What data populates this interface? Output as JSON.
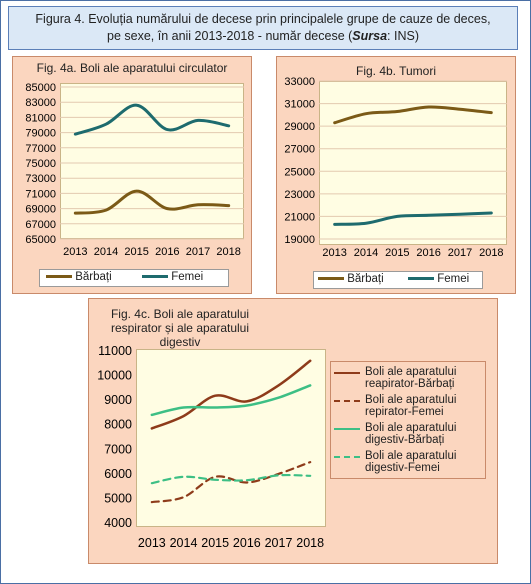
{
  "figure_title": {
    "line1": "Figura 4. Evoluția numărului de decese prin principalele grupe de cauze de deces,",
    "line2_a": "pe sexe, în anii 2013-2018 - număr decese (",
    "source_label": "Sursa",
    "line2_b": ": INS)"
  },
  "colors": {
    "brown": "#7b5a17",
    "teal": "#1e6b6e",
    "red_brown": "#8e3b1a",
    "green": "#3dbf85"
  },
  "chart_data": [
    {
      "type": "line",
      "title": "Fig. 4a. Boli ale aparatului circulator",
      "categories": [
        "2013",
        "2014",
        "2015",
        "2016",
        "2017",
        "2018"
      ],
      "ylim": [
        65000,
        85000
      ],
      "yticks": [
        "85000",
        "83000",
        "81000",
        "79000",
        "77000",
        "75000",
        "73000",
        "71000",
        "69000",
        "67000",
        "65000"
      ],
      "grid": true,
      "legend": "bottom",
      "series": [
        {
          "name": "Bărbați",
          "values": [
            68400,
            68800,
            71300,
            69000,
            69500,
            69400
          ]
        },
        {
          "name": "Femei",
          "values": [
            78800,
            80100,
            82600,
            79400,
            80600,
            79900
          ]
        }
      ]
    },
    {
      "type": "line",
      "title": "Fig. 4b. Tumori",
      "categories": [
        "2013",
        "2014",
        "2015",
        "2016",
        "2017",
        "2018"
      ],
      "ylim": [
        19000,
        33000
      ],
      "yticks": [
        "33000",
        "31000",
        "29000",
        "27000",
        "25000",
        "23000",
        "21000",
        "19000"
      ],
      "grid": true,
      "legend": "bottom",
      "series": [
        {
          "name": "Bărbați",
          "values": [
            29300,
            30100,
            30300,
            30700,
            30500,
            30200
          ]
        },
        {
          "name": "Femei",
          "values": [
            20300,
            20400,
            21000,
            21100,
            21200,
            21300
          ]
        }
      ]
    },
    {
      "type": "line",
      "title_lines": [
        "Fig. 4c. Boli ale aparatului",
        "respirator și ale aparatului",
        "digestiv"
      ],
      "categories": [
        "2013",
        "2014",
        "2015",
        "2016",
        "2017",
        "2018"
      ],
      "ylim": [
        4000,
        11000
      ],
      "yticks": [
        "11000",
        "10000",
        "9000",
        "8000",
        "7000",
        "6000",
        "5000",
        "4000"
      ],
      "grid": false,
      "legend": "right",
      "series": [
        {
          "name_lines": [
            "Boli ale aparatului",
            "reapirator-Bărbați"
          ],
          "values": [
            7850,
            8350,
            9180,
            8950,
            9600,
            10600
          ]
        },
        {
          "name_lines": [
            "Boli ale aparatului",
            "repirator-Femei"
          ],
          "values": [
            4850,
            5050,
            5880,
            5650,
            6000,
            6480
          ]
        },
        {
          "name_lines": [
            "Boli ale aparatului",
            "digestiv-Bărbați"
          ],
          "values": [
            8400,
            8700,
            8700,
            8780,
            9100,
            9600
          ]
        },
        {
          "name_lines": [
            "Boli ale aparatului",
            "digestiv-Femei"
          ],
          "values": [
            5620,
            5880,
            5760,
            5740,
            5940,
            5920
          ]
        }
      ]
    }
  ]
}
